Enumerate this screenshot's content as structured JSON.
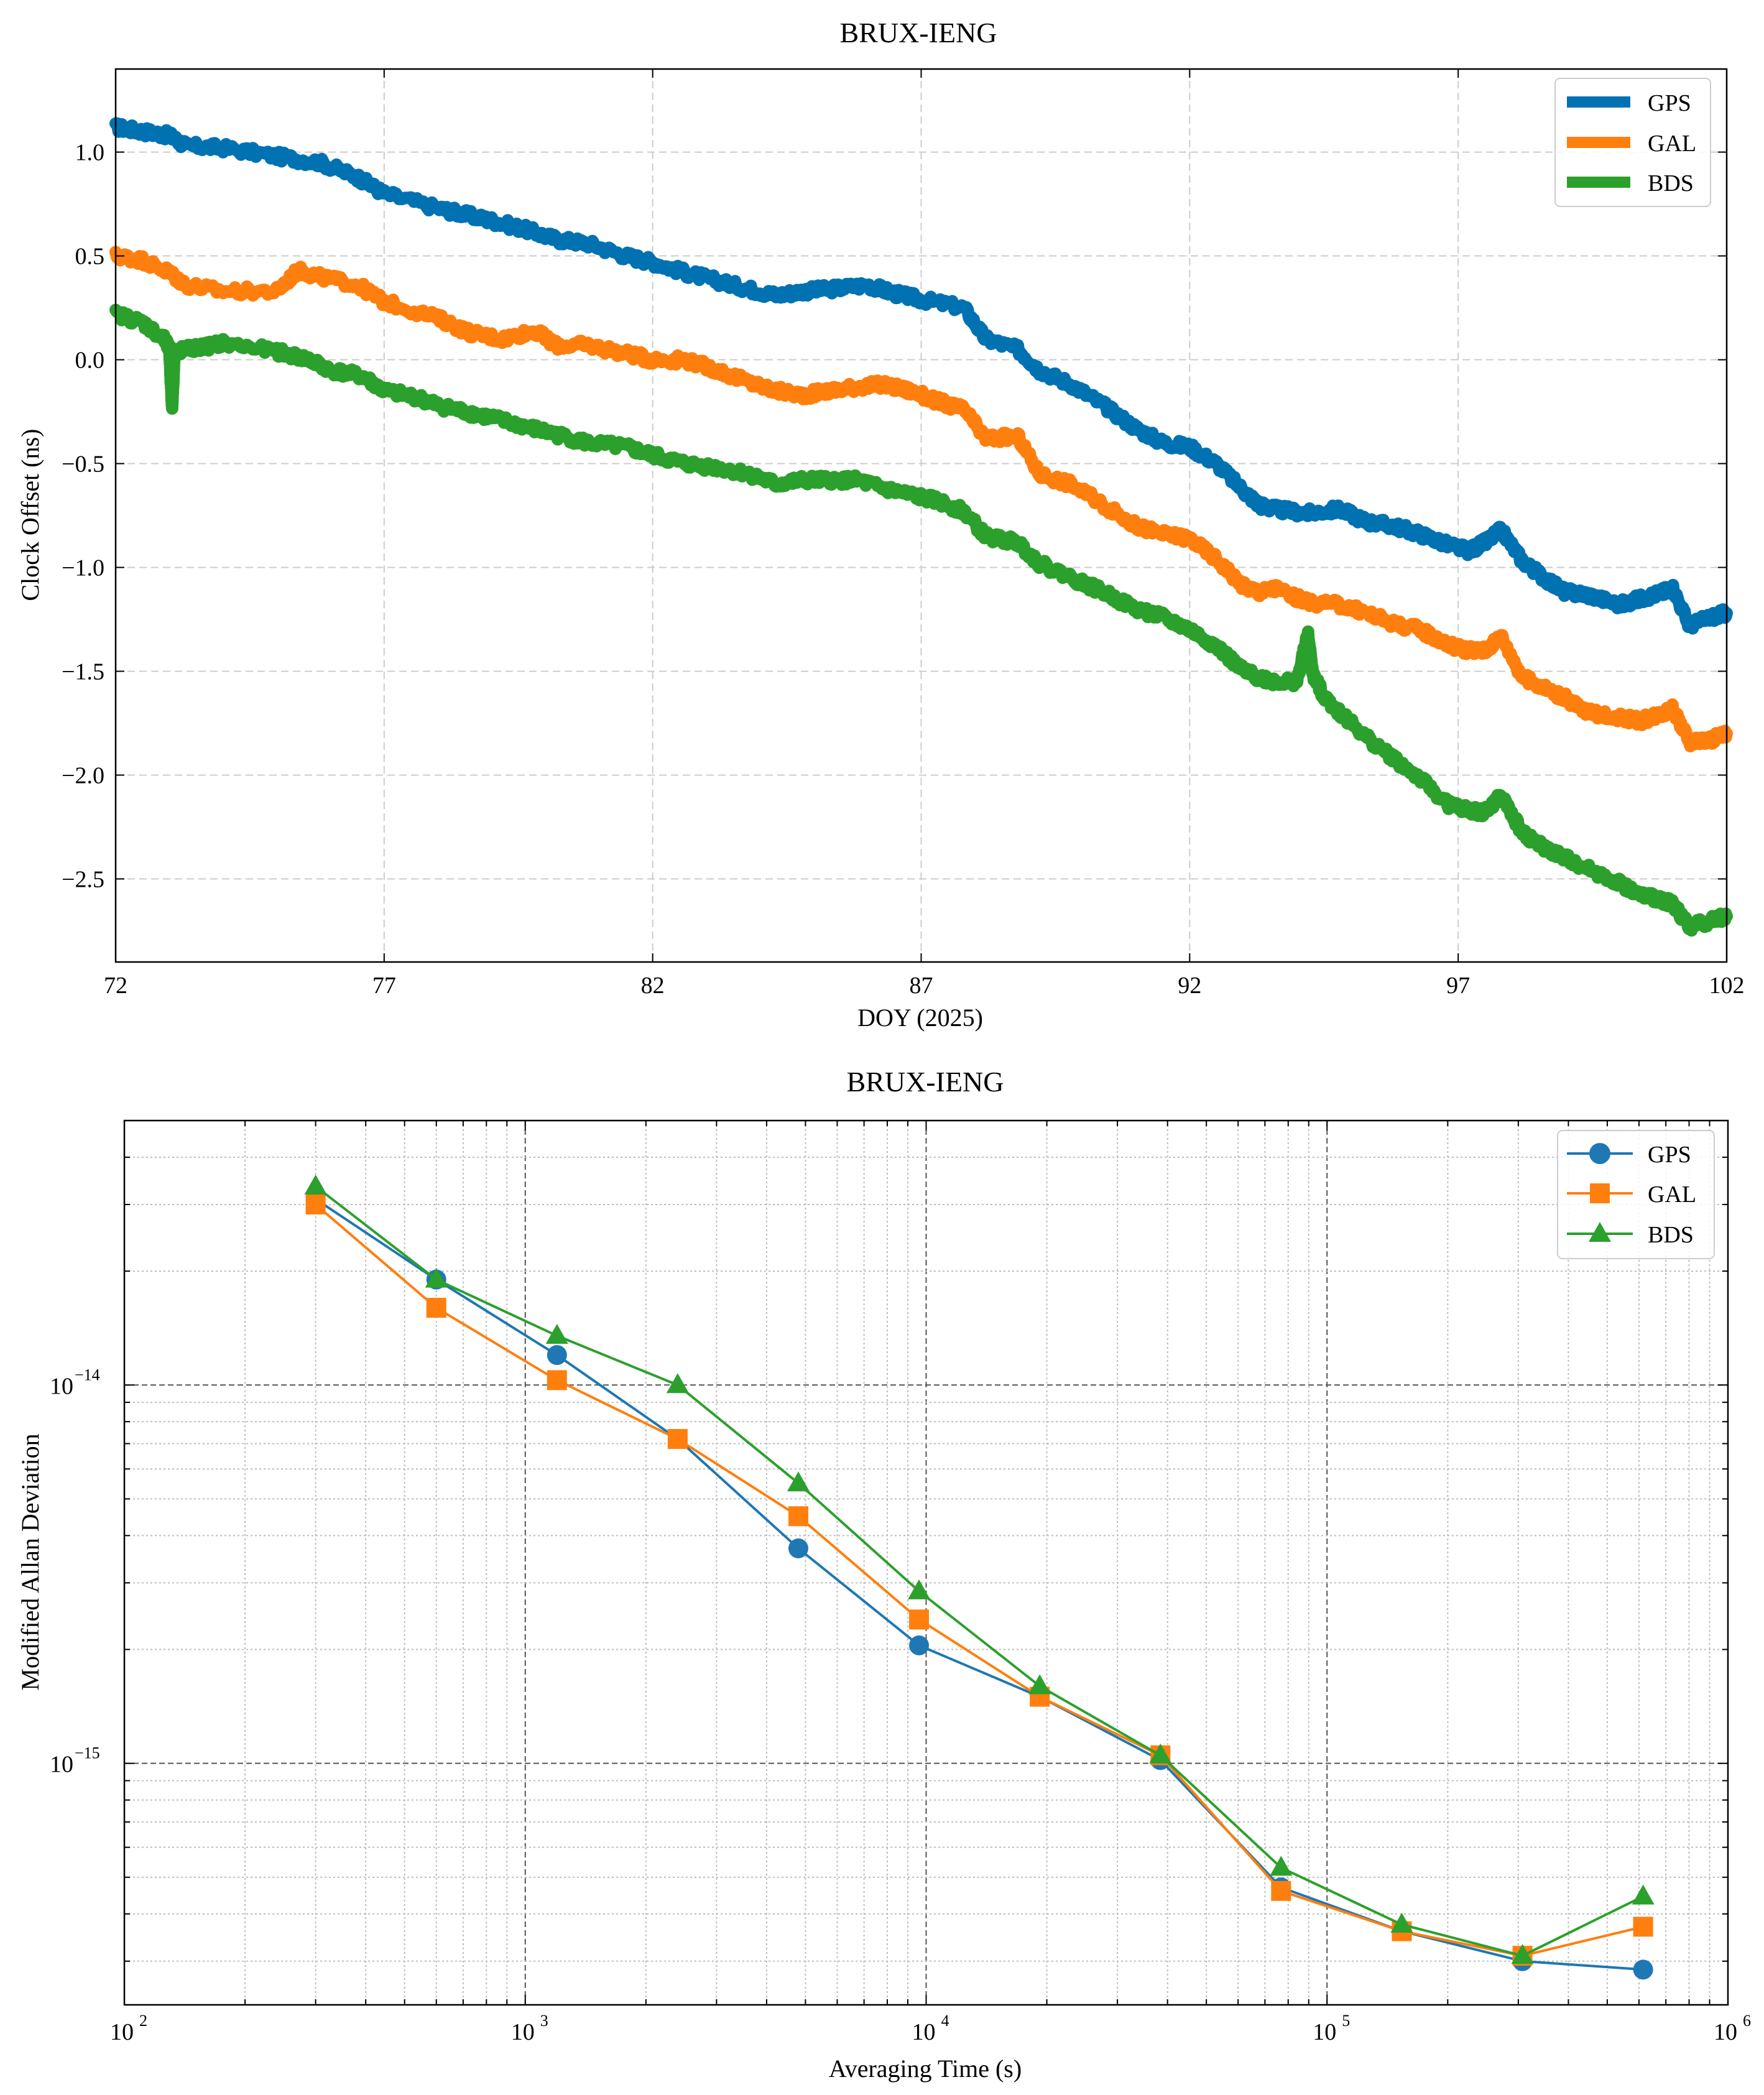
{
  "chart_data": [
    {
      "type": "line",
      "title": "BRUX-IENG",
      "xlabel": "DOY (2025)",
      "ylabel": "Clock Offset (ns)",
      "xlim": [
        72,
        102
      ],
      "ylim": [
        -2.9,
        1.4
      ],
      "x_ticks": [
        72,
        77,
        82,
        87,
        92,
        97,
        102
      ],
      "x_tick_labels": [
        "72",
        "77",
        "82",
        "87",
        "92",
        "97",
        "102"
      ],
      "y_ticks": [
        1.0,
        0.5,
        0.0,
        -0.5,
        -1.0,
        -1.5,
        -2.0,
        -2.5
      ],
      "y_tick_labels": [
        "1.0",
        "0.5",
        "0.0",
        "−0.5",
        "−1.0",
        "−1.5",
        "−2.0",
        "−2.5"
      ],
      "grid": true,
      "legend_position": "top-right",
      "series": [
        {
          "name": "GPS",
          "color": "#0072B2",
          "x": [
            72.0,
            72.5,
            73.0,
            73.3,
            74.0,
            75.0,
            75.8,
            76.5,
            77.0,
            78.0,
            78.5,
            79.0,
            79.6,
            80.2,
            80.8,
            81.5,
            82.0,
            82.6,
            83.2,
            83.8,
            84.3,
            84.8,
            85.3,
            86.0,
            86.5,
            87.0,
            87.8,
            88.2,
            88.8,
            89.2,
            89.8,
            90.4,
            91.0,
            91.5,
            92.0,
            92.5,
            93.0,
            93.3,
            93.6,
            94.2,
            94.8,
            95.3,
            95.8,
            96.3,
            96.8,
            97.2,
            97.5,
            97.8,
            98.2,
            98.6,
            99.0,
            99.4,
            100.0,
            100.4,
            100.8,
            101.0,
            101.3,
            101.7,
            102.0
          ],
          "values": [
            1.12,
            1.1,
            1.08,
            1.03,
            1.02,
            0.98,
            0.95,
            0.88,
            0.8,
            0.73,
            0.7,
            0.67,
            0.63,
            0.58,
            0.56,
            0.5,
            0.47,
            0.42,
            0.38,
            0.34,
            0.31,
            0.33,
            0.34,
            0.36,
            0.32,
            0.29,
            0.25,
            0.1,
            0.05,
            -0.05,
            -0.12,
            -0.22,
            -0.33,
            -0.4,
            -0.42,
            -0.5,
            -0.63,
            -0.7,
            -0.72,
            -0.74,
            -0.72,
            -0.78,
            -0.8,
            -0.84,
            -0.89,
            -0.92,
            -0.88,
            -0.82,
            -0.97,
            -1.05,
            -1.12,
            -1.13,
            -1.18,
            -1.15,
            -1.12,
            -1.1,
            -1.28,
            -1.24,
            -1.22
          ]
        },
        {
          "name": "GAL",
          "color": "#FF7F0E",
          "x": [
            72.0,
            72.5,
            73.0,
            73.3,
            74.0,
            75.0,
            75.4,
            75.8,
            76.5,
            77.0,
            78.0,
            78.6,
            79.2,
            79.8,
            80.2,
            80.8,
            81.5,
            82.0,
            82.6,
            83.2,
            83.8,
            84.3,
            84.8,
            85.3,
            85.8,
            86.3,
            86.8,
            87.3,
            87.8,
            88.2,
            88.8,
            89.2,
            89.8,
            90.4,
            91.0,
            91.5,
            92.0,
            92.5,
            93.0,
            93.3,
            93.6,
            94.2,
            94.8,
            95.3,
            95.8,
            96.3,
            96.8,
            97.2,
            97.5,
            97.8,
            98.2,
            98.6,
            99.0,
            99.4,
            100.0,
            100.4,
            100.8,
            101.0,
            101.3,
            101.7,
            102.0
          ],
          "values": [
            0.5,
            0.48,
            0.42,
            0.36,
            0.33,
            0.33,
            0.43,
            0.4,
            0.36,
            0.28,
            0.2,
            0.13,
            0.1,
            0.14,
            0.07,
            0.07,
            0.03,
            0.0,
            0.0,
            -0.05,
            -0.11,
            -0.15,
            -0.17,
            -0.15,
            -0.13,
            -0.12,
            -0.15,
            -0.2,
            -0.24,
            -0.38,
            -0.37,
            -0.55,
            -0.6,
            -0.7,
            -0.8,
            -0.84,
            -0.86,
            -0.96,
            -1.09,
            -1.12,
            -1.1,
            -1.17,
            -1.18,
            -1.22,
            -1.27,
            -1.3,
            -1.37,
            -1.4,
            -1.4,
            -1.33,
            -1.53,
            -1.58,
            -1.63,
            -1.7,
            -1.72,
            -1.74,
            -1.7,
            -1.68,
            -1.84,
            -1.83,
            -1.8
          ]
        },
        {
          "name": "BDS",
          "color": "#2CA02C",
          "x": [
            72.0,
            72.5,
            72.9,
            73.0,
            73.05,
            73.1,
            73.6,
            74.0,
            75.0,
            75.6,
            76.0,
            76.6,
            77.0,
            77.6,
            78.0,
            78.5,
            79.0,
            79.6,
            80.2,
            80.8,
            81.5,
            82.0,
            82.6,
            83.2,
            83.8,
            84.3,
            84.8,
            85.3,
            85.8,
            86.3,
            86.8,
            87.3,
            87.8,
            88.2,
            88.8,
            89.2,
            89.8,
            90.4,
            91.0,
            91.5,
            92.0,
            92.5,
            93.0,
            93.3,
            93.6,
            94.0,
            94.2,
            94.3,
            94.5,
            94.8,
            95.3,
            95.8,
            96.3,
            96.8,
            97.2,
            97.5,
            97.8,
            98.2,
            98.6,
            99.0,
            99.4,
            100.0,
            100.4,
            100.8,
            101.0,
            101.3,
            101.7,
            102.0
          ],
          "values": [
            0.22,
            0.18,
            0.1,
            0.05,
            -0.23,
            0.04,
            0.06,
            0.08,
            0.04,
            0.0,
            -0.05,
            -0.08,
            -0.15,
            -0.18,
            -0.22,
            -0.25,
            -0.28,
            -0.32,
            -0.36,
            -0.4,
            -0.42,
            -0.46,
            -0.5,
            -0.52,
            -0.55,
            -0.6,
            -0.58,
            -0.58,
            -0.58,
            -0.62,
            -0.65,
            -0.68,
            -0.73,
            -0.85,
            -0.88,
            -0.98,
            -1.05,
            -1.12,
            -1.2,
            -1.24,
            -1.3,
            -1.38,
            -1.5,
            -1.53,
            -1.55,
            -1.55,
            -1.32,
            -1.52,
            -1.62,
            -1.7,
            -1.82,
            -1.92,
            -2.02,
            -2.14,
            -2.17,
            -2.18,
            -2.1,
            -2.28,
            -2.35,
            -2.4,
            -2.45,
            -2.52,
            -2.58,
            -2.6,
            -2.62,
            -2.73,
            -2.7,
            -2.68
          ]
        }
      ]
    },
    {
      "type": "line",
      "title": "BRUX-IENG",
      "xlabel": "Averaging Time (s)",
      "ylabel": "Modified Allan Deviation",
      "xscale": "log",
      "yscale": "log",
      "xlim": [
        100,
        1000000
      ],
      "ylim": [
        2.3e-16,
        5e-14
      ],
      "x_ticks": [
        100,
        1000,
        10000,
        100000,
        1000000
      ],
      "x_tick_base": [
        "10",
        "10",
        "10",
        "10",
        "10"
      ],
      "x_tick_exp": [
        "2",
        "3",
        "4",
        "5",
        "6"
      ],
      "y_ticks": [
        1e-14,
        1e-15
      ],
      "y_tick_base": [
        "10",
        "10"
      ],
      "y_tick_exp": [
        "−14",
        "−15"
      ],
      "grid": true,
      "legend_position": "top-right",
      "series": [
        {
          "name": "GPS",
          "color": "#1F77B4",
          "marker": "circle",
          "x": [
            300,
            600,
            1200,
            2400,
            4800,
            9600,
            19200,
            38400,
            76800,
            153600,
            307200,
            614400
          ],
          "values": [
            3.1e-14,
            1.9e-14,
            1.2e-14,
            7.2e-15,
            3.7e-15,
            2.05e-15,
            1.5e-15,
            1.02e-15,
            4.7e-16,
            3.6e-16,
            3e-16,
            2.85e-16
          ]
        },
        {
          "name": "GAL",
          "color": "#FF7F0E",
          "marker": "square",
          "x": [
            300,
            600,
            1200,
            2400,
            4800,
            9600,
            19200,
            38400,
            76800,
            153600,
            307200,
            614400
          ],
          "values": [
            3e-14,
            1.6e-14,
            1.03e-14,
            7.2e-15,
            4.5e-15,
            2.4e-15,
            1.5e-15,
            1.05e-15,
            4.6e-16,
            3.6e-16,
            3.1e-16,
            3.7e-16
          ]
        },
        {
          "name": "BDS",
          "color": "#2CA02C",
          "marker": "triangle",
          "x": [
            300,
            600,
            1200,
            2400,
            4800,
            9600,
            19200,
            38400,
            76800,
            153600,
            307200,
            614400
          ],
          "values": [
            3.35e-14,
            1.9e-14,
            1.35e-14,
            1e-14,
            5.5e-15,
            2.85e-15,
            1.6e-15,
            1.05e-15,
            5.3e-16,
            3.75e-16,
            3.1e-16,
            4.45e-16
          ]
        }
      ]
    }
  ]
}
